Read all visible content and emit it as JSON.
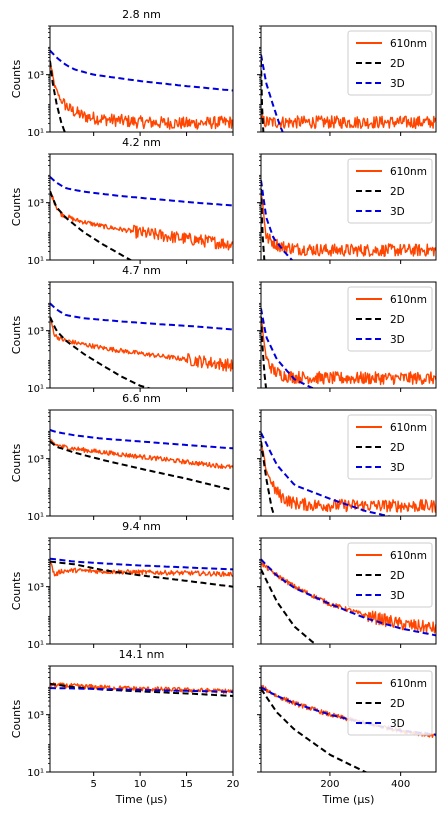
{
  "chart_data": {
    "type": "line",
    "ylabel": "Counts",
    "yscale": "log",
    "ylim": [
      10,
      50000
    ],
    "y_ticks": [
      {
        "v": 10,
        "label": "10¹"
      },
      {
        "v": 1000,
        "label": "10³"
      }
    ],
    "left_x": {
      "xlabel": "Time (μs)",
      "xlim": [
        0.3,
        20
      ],
      "ticks": [
        5,
        10,
        15,
        20
      ],
      "tick_labels": [
        "5",
        "10",
        "15",
        "20"
      ]
    },
    "right_x": {
      "xlabel": "Time (μs)",
      "xlim": [
        5,
        500
      ],
      "ticks": [
        200,
        400
      ],
      "tick_labels": [
        "200",
        "400"
      ]
    },
    "legend": {
      "position": "top-right",
      "entries": [
        {
          "name": "610nm",
          "color": "#ff4500",
          "dash": "solid"
        },
        {
          "name": "2D",
          "color": "#000000",
          "dash": "dashed"
        },
        {
          "name": "3D",
          "color": "#0000dd",
          "dash": "dashed"
        }
      ]
    },
    "rows": [
      {
        "title": "2.8 nm",
        "left": {
          "610nm": {
            "x": [
              0.3,
              0.8,
              1.5,
              2.5,
              4,
              6,
              10,
              15,
              20
            ],
            "y": [
              3000,
              400,
              120,
              60,
              35,
              28,
              22,
              20,
              22
            ],
            "noisy": true
          },
          "2D": {
            "x": [
              0.3,
              0.6,
              1.0,
              1.5,
              2.0
            ],
            "y": [
              3000,
              500,
              100,
              22,
              8
            ]
          },
          "3D": {
            "x": [
              0.3,
              1,
              2,
              3,
              5,
              10,
              15,
              20
            ],
            "y": [
              7000,
              4000,
              2200,
              1500,
              1000,
              600,
              400,
              280
            ]
          }
        },
        "right": {
          "610nm": {
            "x": [
              5,
              20,
              100,
              300,
              500
            ],
            "y": [
              25,
              22,
              22,
              22,
              22
            ],
            "noisy": true
          },
          "2D": {
            "x": [
              5,
              8,
              12
            ],
            "y": [
              3000,
              80,
              8
            ]
          },
          "3D": {
            "x": [
              5,
              20,
              40,
              60,
              70
            ],
            "y": [
              5000,
              500,
              80,
              15,
              8
            ]
          }
        }
      },
      {
        "title": "4.2 nm",
        "left": {
          "610nm": {
            "x": [
              0.3,
              1,
              1.5,
              3,
              6,
              10,
              15,
              20
            ],
            "y": [
              2500,
              700,
              400,
              250,
              150,
              90,
              55,
              35
            ],
            "noisy": true
          },
          "2D": {
            "x": [
              0.3,
              1,
              2,
              4,
              6,
              8,
              9.5
            ],
            "y": [
              2500,
              700,
              300,
              90,
              35,
              15,
              8
            ]
          },
          "3D": {
            "x": [
              0.3,
              1,
              2,
              4,
              8,
              12,
              16,
              20
            ],
            "y": [
              8000,
              5000,
              3200,
              2400,
              1700,
              1300,
              1000,
              800
            ]
          }
        },
        "right": {
          "610nm": {
            "x": [
              5,
              20,
              60,
              100,
              200,
              300,
              500
            ],
            "y": [
              3000,
              60,
              30,
              25,
              22,
              22,
              22
            ],
            "noisy": true
          },
          "2D": {
            "x": [
              5,
              8,
              10,
              15
            ],
            "y": [
              3000,
              300,
              60,
              8
            ]
          },
          "3D": {
            "x": [
              5,
              20,
              40,
              70,
              100
            ],
            "y": [
              6000,
              300,
              60,
              20,
              8
            ]
          }
        }
      },
      {
        "title": "4.7 nm",
        "left": {
          "610nm": {
            "x": [
              0.3,
              0.8,
              1.5,
              3,
              6,
              10,
              15,
              20
            ],
            "y": [
              3000,
              700,
              500,
              380,
              250,
              160,
              100,
              60
            ],
            "noisy": true
          },
          "2D": {
            "x": [
              0.3,
              1,
              2,
              4,
              6,
              8,
              10,
              12
            ],
            "y": [
              3000,
              1000,
              450,
              150,
              60,
              25,
              12,
              8
            ]
          },
          "3D": {
            "x": [
              0.3,
              1,
              2,
              4,
              8,
              12,
              16,
              20
            ],
            "y": [
              9000,
              5500,
              3500,
              2700,
              2100,
              1700,
              1400,
              1100
            ]
          }
        },
        "right": {
          "610nm": {
            "x": [
              5,
              20,
              40,
              60,
              80,
              100,
              200,
              500
            ],
            "y": [
              3000,
              100,
              40,
              30,
              26,
              24,
              22,
              22
            ],
            "noisy": true
          },
          "2D": {
            "x": [
              5,
              10,
              15,
              20
            ],
            "y": [
              3000,
              200,
              30,
              8
            ]
          },
          "3D": {
            "x": [
              5,
              20,
              50,
              100,
              150,
              200
            ],
            "y": [
              6000,
              600,
              100,
              20,
              10,
              8
            ]
          }
        }
      },
      {
        "title": "6.6 nm",
        "left": {
          "610nm": {
            "x": [
              0.3,
              1,
              2,
              4,
              8,
              12,
              16,
              20
            ],
            "y": [
              4000,
              3000,
              2500,
              2000,
              1400,
              1000,
              700,
              500
            ],
            "noisy": true
          },
          "2D": {
            "x": [
              0.3,
              1,
              3,
              6,
              10,
              15,
              20
            ],
            "y": [
              4000,
              2600,
              1600,
              900,
              450,
              200,
              80
            ]
          },
          "3D": {
            "x": [
              0.3,
              1,
              3,
              6,
              10,
              15,
              20
            ],
            "y": [
              10000,
              8500,
              6500,
              5000,
              4000,
              3000,
              2300
            ]
          }
        },
        "right": {
          "610nm": {
            "x": [
              5,
              20,
              40,
              60,
              80,
              100,
              150,
              500
            ],
            "y": [
              4000,
              400,
              100,
              50,
              35,
              28,
              24,
              22
            ],
            "noisy": true
          },
          "2D": {
            "x": [
              5,
              20,
              35,
              50
            ],
            "y": [
              4000,
              200,
              20,
              5
            ]
          },
          "3D": {
            "x": [
              5,
              50,
              100,
              200,
              300,
              400
            ],
            "y": [
              8000,
              600,
              120,
              40,
              15,
              8
            ]
          }
        }
      },
      {
        "title": "9.4 nm",
        "left": {
          "610nm": {
            "x": [
              0.3,
              0.8,
              1.5,
              3,
              6,
              10,
              15,
              20
            ],
            "y": [
              8000,
              2500,
              3500,
              3700,
              3400,
              3200,
              3000,
              2700
            ],
            "noisy": true
          },
          "2D": {
            "x": [
              0.3,
              3,
              6,
              10,
              15,
              20
            ],
            "y": [
              7500,
              6000,
              3800,
              2500,
              1600,
              1000
            ]
          },
          "3D": {
            "x": [
              0.3,
              3,
              6,
              10,
              15,
              20
            ],
            "y": [
              9500,
              7500,
              6500,
              5500,
              4700,
              4000
            ]
          }
        },
        "right": {
          "610nm": {
            "x": [
              5,
              50,
              100,
              200,
              300,
              400,
              500
            ],
            "y": [
              6500,
              2500,
              1000,
              250,
              100,
              50,
              35
            ],
            "noisy": true
          },
          "2D": {
            "x": [
              5,
              50,
              100,
              150,
              190
            ],
            "y": [
              4000,
              300,
              40,
              12,
              6
            ]
          },
          "3D": {
            "x": [
              5,
              50,
              100,
              200,
              300,
              400,
              500
            ],
            "y": [
              9000,
              2400,
              900,
              250,
              80,
              35,
              20
            ]
          }
        }
      },
      {
        "title": "14.1 nm",
        "left": {
          "610nm": {
            "x": [
              0.3,
              3,
              6,
              10,
              15,
              20
            ],
            "y": [
              11000,
              10000,
              9000,
              8000,
              7300,
              6500
            ],
            "noisy": true
          },
          "2D": {
            "x": [
              0.3,
              3,
              6,
              10,
              15,
              20
            ],
            "y": [
              12000,
              9000,
              7500,
              6500,
              5500,
              4500
            ]
          },
          "3D": {
            "x": [
              0.3,
              3,
              6,
              10,
              15,
              20
            ],
            "y": [
              8500,
              8200,
              7800,
              7300,
              6800,
              6200
            ]
          }
        },
        "right": {
          "610nm": {
            "x": [
              5,
              50,
              100,
              200,
              300,
              400,
              500
            ],
            "y": [
              9500,
              4500,
              2500,
              1000,
              500,
              280,
              180
            ],
            "noisy": true
          },
          "2D": {
            "x": [
              5,
              50,
              100,
              200,
              300,
              350
            ],
            "y": [
              8000,
              1200,
              300,
              40,
              10,
              6
            ]
          },
          "3D": {
            "x": [
              5,
              50,
              100,
              200,
              300,
              400,
              500
            ],
            "y": [
              9000,
              4500,
              2500,
              1000,
              500,
              280,
              200
            ]
          }
        }
      }
    ]
  }
}
